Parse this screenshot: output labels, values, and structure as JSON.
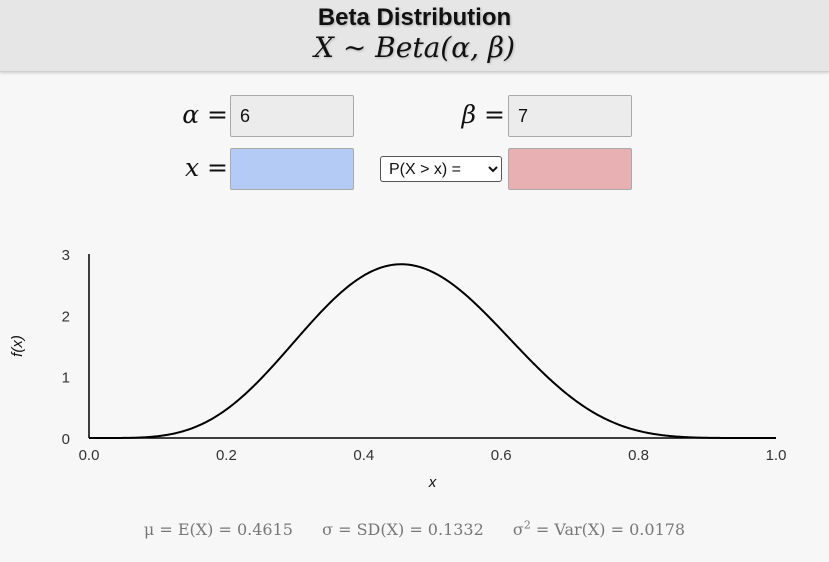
{
  "header": {
    "title": "Beta Distribution",
    "formula": "X ∼ Beta(α, β)"
  },
  "inputs": {
    "alpha_label": "α =",
    "alpha_value": "6",
    "beta_label": "β =",
    "beta_value": "7",
    "x_label": "x =",
    "x_value": "",
    "prob_value": "",
    "prob_options": [
      "P(X > x) ="
    ],
    "prob_selected": "P(X > x) ="
  },
  "colors": {
    "x_field": "#b3cbf5",
    "prob_field": "#e8b0b3",
    "param_field": "#ececec",
    "curve": "#000000"
  },
  "chart_data": {
    "type": "line",
    "series": [
      {
        "function": "beta_pdf",
        "alpha": 6,
        "beta": 7
      }
    ],
    "xlabel": "x",
    "ylabel": "f(x)",
    "xlim": [
      0,
      1
    ],
    "ylim": [
      0,
      3
    ],
    "xticks": [
      "0.0",
      "0.2",
      "0.4",
      "0.6",
      "0.8",
      "1.0"
    ],
    "yticks": [
      "0",
      "1",
      "2",
      "3"
    ],
    "grid": false
  },
  "stats": {
    "mean": "μ = E(X) = 0.4615",
    "sd": "σ = SD(X) = 0.1332",
    "var_prefix": "σ",
    "var_power": "2",
    "var_rest": " = Var(X) = 0.0178"
  }
}
